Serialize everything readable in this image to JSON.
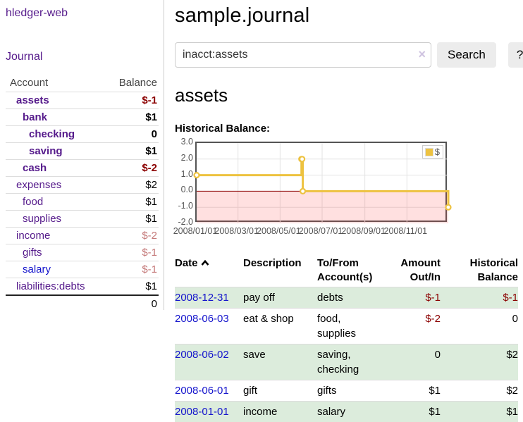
{
  "app_title": "hledger-web",
  "sidebar": {
    "journal_link": "Journal",
    "account_header": "Account",
    "balance_header": "Balance",
    "accounts": [
      {
        "name": "assets",
        "balance": "$-1",
        "level": 0,
        "bold": true,
        "name_color": "purple",
        "balance_style": "neg-strong"
      },
      {
        "name": "bank",
        "balance": "$1",
        "level": 1,
        "bold": true,
        "name_color": "purple",
        "balance_style": "normal"
      },
      {
        "name": "checking",
        "balance": "0",
        "level": 2,
        "bold": true,
        "name_color": "purple",
        "balance_style": "normal"
      },
      {
        "name": "saving",
        "balance": "$1",
        "level": 2,
        "bold": true,
        "name_color": "purple",
        "balance_style": "normal"
      },
      {
        "name": "cash",
        "balance": "$-2",
        "level": 1,
        "bold": true,
        "name_color": "purple",
        "balance_style": "neg-strong"
      },
      {
        "name": "expenses",
        "balance": "$2",
        "level": 0,
        "bold": false,
        "name_color": "purple",
        "balance_style": "normal"
      },
      {
        "name": "food",
        "balance": "$1",
        "level": 1,
        "bold": false,
        "name_color": "purple",
        "balance_style": "normal"
      },
      {
        "name": "supplies",
        "balance": "$1",
        "level": 1,
        "bold": false,
        "name_color": "purple",
        "balance_style": "normal"
      },
      {
        "name": "income",
        "balance": "$-2",
        "level": 0,
        "bold": false,
        "name_color": "purple",
        "balance_style": "neg-soft"
      },
      {
        "name": "gifts",
        "balance": "$-1",
        "level": 1,
        "bold": false,
        "name_color": "purple",
        "balance_style": "neg-soft"
      },
      {
        "name": "salary",
        "balance": "$-1",
        "level": 1,
        "bold": false,
        "name_color": "blue",
        "balance_style": "neg-soft"
      },
      {
        "name": "liabilities:debts",
        "balance": "$1",
        "level": 0,
        "bold": false,
        "name_color": "purple",
        "balance_style": "normal"
      }
    ],
    "total": "0"
  },
  "main": {
    "title": "sample.journal",
    "search": {
      "value": "inacct:assets",
      "clear_icon": "×",
      "search_button": "Search",
      "help_button": "?"
    },
    "account_heading": "assets",
    "chart_title": "Historical Balance:"
  },
  "chart_data": {
    "type": "line",
    "step": true,
    "title": "Historical Balance",
    "legend": "$",
    "legend_position": "top-right",
    "x_range": [
      "2008-01-01",
      "2008-12-31"
    ],
    "ylim": [
      -2.0,
      3.0
    ],
    "grid": true,
    "negative_region": true,
    "series": [
      {
        "name": "$",
        "color": "#edc240",
        "points": [
          {
            "x": "2008-01-01",
            "y": 1
          },
          {
            "x": "2008-06-01",
            "y": 2
          },
          {
            "x": "2008-06-02",
            "y": 2
          },
          {
            "x": "2008-06-03",
            "y": 0
          },
          {
            "x": "2008-12-31",
            "y": -1
          }
        ]
      }
    ],
    "yticks": [
      {
        "v": 3,
        "label": "3.0"
      },
      {
        "v": 2,
        "label": "2.0"
      },
      {
        "v": 1,
        "label": "1.0"
      },
      {
        "v": 0,
        "label": "0.0"
      },
      {
        "v": -1,
        "label": "-1.0"
      },
      {
        "v": -2,
        "label": "-2.0"
      }
    ],
    "xticks": [
      {
        "x": "2008-01-01",
        "label": "2008/01/01"
      },
      {
        "x": "2008-03-01",
        "label": "2008/03/01"
      },
      {
        "x": "2008-05-01",
        "label": "2008/05/01"
      },
      {
        "x": "2008-07-01",
        "label": "2008/07/01"
      },
      {
        "x": "2008-09-01",
        "label": "2008/09/01"
      },
      {
        "x": "2008-11-01",
        "label": "2008/11/01"
      }
    ]
  },
  "register": {
    "headers": {
      "date": "Date",
      "description": "Description",
      "account": "To/From Account(s)",
      "amount": "Amount Out/In",
      "balance": "Historical Balance"
    },
    "rows": [
      {
        "date": "2008-12-31",
        "description": "pay off",
        "account": "debts",
        "amount": "$-1",
        "amount_negative": true,
        "balance": "$-1",
        "balance_negative": true,
        "shaded": true
      },
      {
        "date": "2008-06-03",
        "description": "eat & shop",
        "account": "food, supplies",
        "amount": "$-2",
        "amount_negative": true,
        "balance": "0",
        "balance_negative": false,
        "shaded": false
      },
      {
        "date": "2008-06-02",
        "description": "save",
        "account": "saving, checking",
        "amount": "0",
        "amount_negative": false,
        "balance": "$2",
        "balance_negative": false,
        "shaded": true
      },
      {
        "date": "2008-06-01",
        "description": "gift",
        "account": "gifts",
        "amount": "$1",
        "amount_negative": false,
        "balance": "$2",
        "balance_negative": false,
        "shaded": false
      },
      {
        "date": "2008-01-01",
        "description": "income",
        "account": "salary",
        "amount": "$1",
        "amount_negative": false,
        "balance": "$1",
        "balance_negative": false,
        "shaded": true
      }
    ]
  },
  "colors": {
    "link_purple": "#551a8b",
    "link_blue": "#1414cc",
    "negative_strong": "#8b0000",
    "negative_soft": "#c47878",
    "row_shade_green": "#dcecdc",
    "chart_line": "#edc240",
    "chart_negative_fill": "rgba(255,60,60,0.16)",
    "chart_zero_line": "#8b0000",
    "chart_border": "#545454",
    "grid_line": "#e3e3e3"
  }
}
